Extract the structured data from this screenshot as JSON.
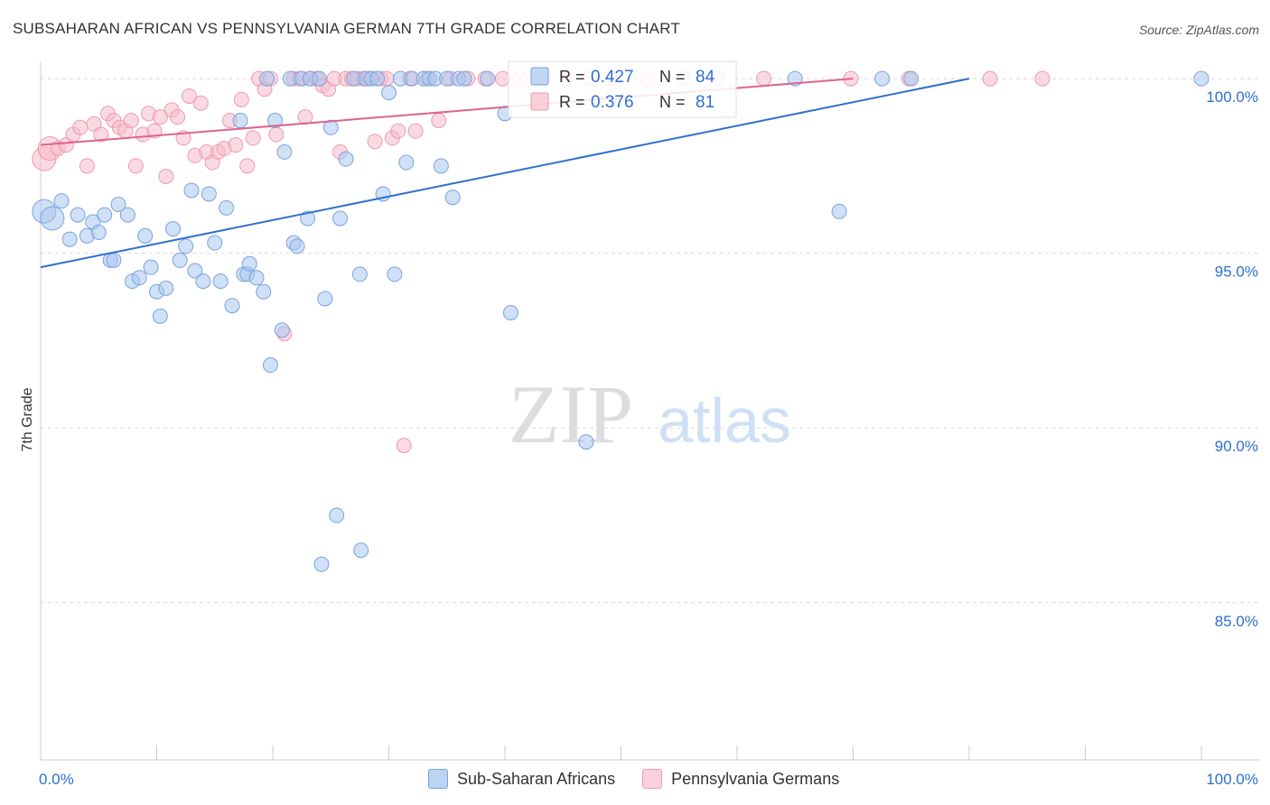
{
  "header": {
    "title": "SUBSAHARAN AFRICAN VS PENNSYLVANIA GERMAN 7TH GRADE CORRELATION CHART",
    "source": "Source: ZipAtlas.com"
  },
  "watermark": {
    "zip": "ZIP",
    "atlas": "atlas"
  },
  "colors": {
    "blue_fill": "#a9c6ee",
    "blue_stroke": "#7aa3df",
    "blue_line": "#2f6fcf",
    "pink_fill": "#f6bccb",
    "pink_stroke": "#ee9ab2",
    "pink_line": "#e0628d",
    "value_text": "#2f6fcf",
    "grid": "#d9d9d9"
  },
  "chart_data": {
    "type": "scatter",
    "title": "SUBSAHARAN AFRICAN VS PENNSYLVANIA GERMAN 7TH GRADE CORRELATION CHART",
    "xlabel": "",
    "ylabel": "7th Grade",
    "xlim": [
      0,
      100
    ],
    "ylim": [
      80.5,
      100.7
    ],
    "x_tick_labels": [
      "0.0%",
      "100.0%"
    ],
    "y_ticks": [
      100,
      95,
      90,
      85
    ],
    "y_tick_labels": [
      "100.0%",
      "95.0%",
      "90.0%",
      "85.0%"
    ],
    "grid": true,
    "legend_position": "top-center",
    "stats": [
      {
        "r_label": "R =",
        "r": "0.427",
        "n_label": "N =",
        "n": "84"
      },
      {
        "r_label": "R =",
        "r": "0.376",
        "n_label": "N =",
        "n": "81"
      }
    ],
    "series": [
      {
        "name": "Sub-Saharan Africans",
        "color": "blue",
        "trend": {
          "x0": 0,
          "y0": 94.6,
          "x1": 80,
          "y1": 100
        },
        "points": [
          [
            0.3,
            96.2
          ],
          [
            1.0,
            96.0
          ],
          [
            1.8,
            96.5
          ],
          [
            2.5,
            95.4
          ],
          [
            3.2,
            96.1
          ],
          [
            4.0,
            95.5
          ],
          [
            4.5,
            95.9
          ],
          [
            5.0,
            95.6
          ],
          [
            5.5,
            96.1
          ],
          [
            6.0,
            94.8
          ],
          [
            6.3,
            94.8
          ],
          [
            6.7,
            96.4
          ],
          [
            7.5,
            96.1
          ],
          [
            7.9,
            94.2
          ],
          [
            8.5,
            94.3
          ],
          [
            9.0,
            95.5
          ],
          [
            9.5,
            94.6
          ],
          [
            10.0,
            93.9
          ],
          [
            10.3,
            93.2
          ],
          [
            10.8,
            94.0
          ],
          [
            11.4,
            95.7
          ],
          [
            12.0,
            94.8
          ],
          [
            12.5,
            95.2
          ],
          [
            13.0,
            96.8
          ],
          [
            13.3,
            94.5
          ],
          [
            14.0,
            94.2
          ],
          [
            14.5,
            96.7
          ],
          [
            15.0,
            95.3
          ],
          [
            15.5,
            94.2
          ],
          [
            16.0,
            96.3
          ],
          [
            16.5,
            93.5
          ],
          [
            17.2,
            98.8
          ],
          [
            17.5,
            94.4
          ],
          [
            17.8,
            94.4
          ],
          [
            18.0,
            94.7
          ],
          [
            18.6,
            94.3
          ],
          [
            19.2,
            93.9
          ],
          [
            19.5,
            100.0
          ],
          [
            19.8,
            91.8
          ],
          [
            20.2,
            98.8
          ],
          [
            20.8,
            92.8
          ],
          [
            21.0,
            97.9
          ],
          [
            21.5,
            100.0
          ],
          [
            21.8,
            95.3
          ],
          [
            22.1,
            95.2
          ],
          [
            22.5,
            100.0
          ],
          [
            23.0,
            96.0
          ],
          [
            23.2,
            100.0
          ],
          [
            24.0,
            100.0
          ],
          [
            24.2,
            86.1
          ],
          [
            24.5,
            93.7
          ],
          [
            25.0,
            98.6
          ],
          [
            25.5,
            87.5
          ],
          [
            25.8,
            96.0
          ],
          [
            26.3,
            97.7
          ],
          [
            27.0,
            100.0
          ],
          [
            27.5,
            94.4
          ],
          [
            27.6,
            86.5
          ],
          [
            28.0,
            100.0
          ],
          [
            28.5,
            100.0
          ],
          [
            29.0,
            100.0
          ],
          [
            29.5,
            96.7
          ],
          [
            30.0,
            99.6
          ],
          [
            30.5,
            94.4
          ],
          [
            31.0,
            100.0
          ],
          [
            31.5,
            97.6
          ],
          [
            32.0,
            100.0
          ],
          [
            33.0,
            100.0
          ],
          [
            33.5,
            100.0
          ],
          [
            34.0,
            100.0
          ],
          [
            34.5,
            97.5
          ],
          [
            35.0,
            100.0
          ],
          [
            35.5,
            96.6
          ],
          [
            36.0,
            100.0
          ],
          [
            36.5,
            100.0
          ],
          [
            38.5,
            100.0
          ],
          [
            40.0,
            99.0
          ],
          [
            40.5,
            93.3
          ],
          [
            47.0,
            89.6
          ],
          [
            65.0,
            100.0
          ],
          [
            68.8,
            96.2
          ],
          [
            72.5,
            100.0
          ],
          [
            75.0,
            100.0
          ],
          [
            100.0,
            100.0
          ]
        ]
      },
      {
        "name": "Pennsylvania Germans",
        "color": "pink",
        "trend": {
          "x0": 0,
          "y0": 98.1,
          "x1": 70,
          "y1": 100
        },
        "points": [
          [
            0.3,
            97.7
          ],
          [
            0.8,
            98.0
          ],
          [
            1.5,
            98.0
          ],
          [
            2.2,
            98.1
          ],
          [
            2.8,
            98.4
          ],
          [
            3.4,
            98.6
          ],
          [
            4.0,
            97.5
          ],
          [
            4.6,
            98.7
          ],
          [
            5.2,
            98.4
          ],
          [
            5.8,
            99.0
          ],
          [
            6.3,
            98.8
          ],
          [
            6.8,
            98.6
          ],
          [
            7.3,
            98.5
          ],
          [
            7.8,
            98.8
          ],
          [
            8.2,
            97.5
          ],
          [
            8.8,
            98.4
          ],
          [
            9.3,
            99.0
          ],
          [
            9.8,
            98.5
          ],
          [
            10.3,
            98.9
          ],
          [
            10.8,
            97.2
          ],
          [
            11.3,
            99.1
          ],
          [
            11.8,
            98.9
          ],
          [
            12.3,
            98.3
          ],
          [
            12.8,
            99.5
          ],
          [
            13.3,
            97.8
          ],
          [
            13.8,
            99.3
          ],
          [
            14.3,
            97.9
          ],
          [
            14.8,
            97.6
          ],
          [
            15.3,
            97.9
          ],
          [
            15.8,
            98.0
          ],
          [
            16.3,
            98.8
          ],
          [
            16.8,
            98.1
          ],
          [
            17.3,
            99.4
          ],
          [
            17.8,
            97.5
          ],
          [
            18.3,
            98.3
          ],
          [
            18.8,
            100.0
          ],
          [
            19.3,
            99.7
          ],
          [
            19.8,
            100.0
          ],
          [
            20.3,
            98.4
          ],
          [
            21.0,
            92.7
          ],
          [
            21.8,
            100.0
          ],
          [
            22.3,
            100.0
          ],
          [
            22.8,
            98.9
          ],
          [
            23.3,
            100.0
          ],
          [
            23.8,
            100.0
          ],
          [
            24.3,
            99.8
          ],
          [
            24.8,
            99.7
          ],
          [
            25.3,
            100.0
          ],
          [
            25.8,
            97.9
          ],
          [
            26.3,
            100.0
          ],
          [
            26.8,
            100.0
          ],
          [
            27.3,
            100.0
          ],
          [
            27.8,
            100.0
          ],
          [
            28.3,
            100.0
          ],
          [
            28.8,
            98.2
          ],
          [
            29.3,
            100.0
          ],
          [
            29.8,
            100.0
          ],
          [
            30.3,
            98.3
          ],
          [
            30.8,
            98.5
          ],
          [
            31.3,
            89.5
          ],
          [
            31.8,
            100.0
          ],
          [
            32.3,
            98.5
          ],
          [
            33.3,
            100.0
          ],
          [
            34.3,
            98.8
          ],
          [
            35.3,
            100.0
          ],
          [
            36.8,
            100.0
          ],
          [
            38.3,
            100.0
          ],
          [
            39.8,
            100.0
          ],
          [
            41.3,
            100.0
          ],
          [
            43.3,
            100.0
          ],
          [
            45.3,
            100.0
          ],
          [
            47.3,
            100.0
          ],
          [
            49.3,
            100.0
          ],
          [
            52.3,
            100.0
          ],
          [
            55.3,
            100.0
          ],
          [
            58.3,
            100.0
          ],
          [
            62.3,
            100.0
          ],
          [
            69.8,
            100.0
          ],
          [
            74.8,
            100.0
          ],
          [
            81.8,
            100.0
          ],
          [
            86.3,
            100.0
          ]
        ]
      }
    ]
  }
}
